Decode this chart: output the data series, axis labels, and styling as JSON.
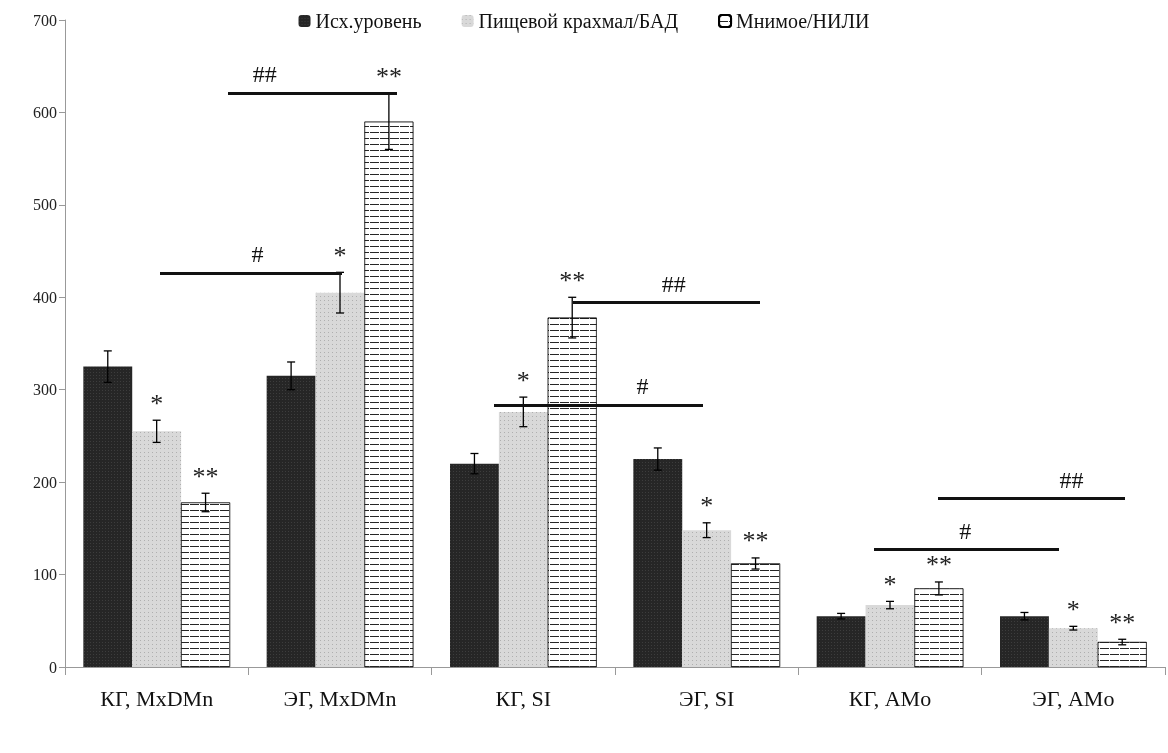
{
  "chart_data": {
    "type": "bar",
    "categories": [
      "КГ, MxDMn",
      "ЭГ, MxDMn",
      "КГ, SI",
      "ЭГ, SI",
      "КГ, AMo",
      "ЭГ, AMo"
    ],
    "series": [
      {
        "name": "Исх.уровень",
        "color": "#262626",
        "values": [
          325,
          315,
          220,
          225,
          55,
          55
        ],
        "errors": [
          17,
          15,
          11,
          12,
          3,
          4
        ]
      },
      {
        "name": "Пищевой крахмал/БАД",
        "color": "#d9d9d9",
        "values": [
          255,
          405,
          276,
          148,
          67,
          42
        ],
        "errors": [
          12,
          22,
          16,
          8,
          4,
          2
        ],
        "value_labels": [
          "*",
          "*",
          "*",
          "*",
          "*",
          "*"
        ]
      },
      {
        "name": "Мнимое/НИЛИ",
        "color": "#ffffff",
        "values": [
          178,
          590,
          378,
          112,
          85,
          27
        ],
        "errors": [
          10,
          30,
          22,
          6,
          7,
          3
        ],
        "value_labels": [
          "**",
          "**",
          "**",
          "**",
          "**",
          "**"
        ]
      }
    ],
    "ylim": [
      0,
      700
    ],
    "yticks": [
      0,
      100,
      200,
      300,
      400,
      500,
      600,
      700
    ],
    "grid": false,
    "legend": "top",
    "annotations": [
      "##",
      "#",
      "##",
      "#",
      "##",
      "#"
    ]
  }
}
